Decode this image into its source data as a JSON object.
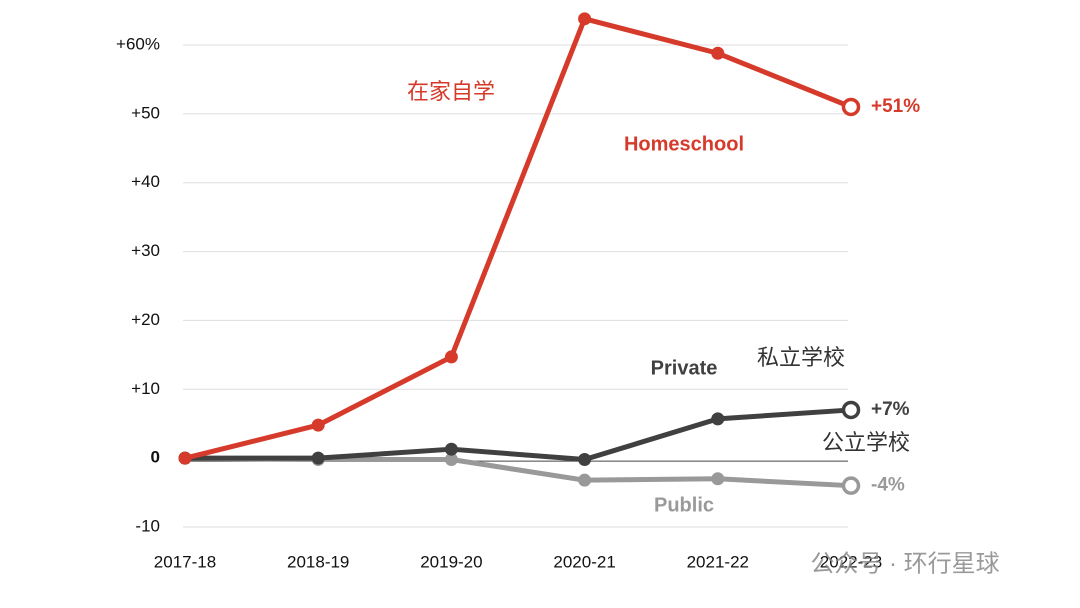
{
  "chart_data": {
    "type": "line",
    "categories": [
      "2017-18",
      "2018-19",
      "2019-20",
      "2020-21",
      "2021-22",
      "2022-23"
    ],
    "series": [
      {
        "name": "Homeschool",
        "color": "#d63a2a",
        "values": [
          0,
          4.8,
          14.7,
          63.8,
          58.8,
          51
        ],
        "value_labels": [
          null,
          null,
          null,
          null,
          null,
          "+51%"
        ],
        "annotation": "在家自学"
      },
      {
        "name": "Private",
        "color": "#404040",
        "values": [
          0,
          0,
          1.3,
          -0.2,
          5.7,
          7
        ],
        "value_labels": [
          null,
          null,
          null,
          null,
          null,
          "+7%"
        ],
        "annotation": "私立学校"
      },
      {
        "name": "Public",
        "color": "#999999",
        "values": [
          0,
          -0.2,
          -0.2,
          -3.2,
          -3,
          -4
        ],
        "value_labels": [
          null,
          null,
          null,
          null,
          null,
          "-4%"
        ],
        "annotation": "公立学校"
      }
    ],
    "ylim": [
      -10,
      60
    ],
    "yticks": [
      {
        "value": 60,
        "label": "+60%"
      },
      {
        "value": 50,
        "label": "+50"
      },
      {
        "value": 40,
        "label": "+40"
      },
      {
        "value": 30,
        "label": "+30"
      },
      {
        "value": 20,
        "label": "+20"
      },
      {
        "value": 10,
        "label": "+10"
      },
      0,
      -10
    ],
    "grid": true,
    "watermark": "公众号 · 环行星球"
  }
}
